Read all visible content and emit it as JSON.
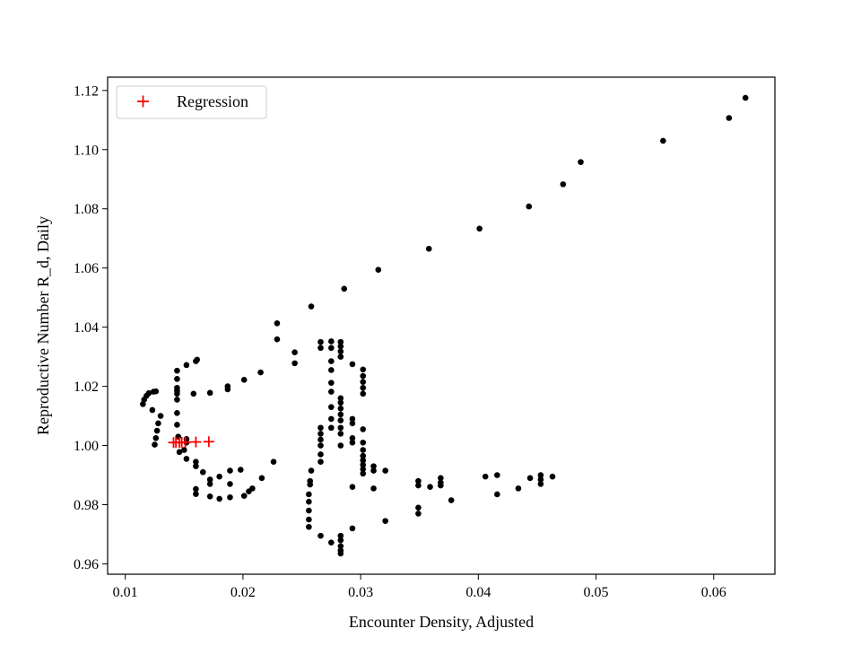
{
  "chart_data": {
    "type": "scatter",
    "title": "",
    "xlabel": "Encounter Density, Adjusted",
    "ylabel": "Reproductive Number R_d, Daily",
    "xlim": [
      0.0085,
      0.0652
    ],
    "ylim": [
      0.9565,
      1.1245
    ],
    "xticks": [
      0.01,
      0.02,
      0.03,
      0.04,
      0.05,
      0.06
    ],
    "xtick_labels": [
      "0.01",
      "0.02",
      "0.03",
      "0.04",
      "0.05",
      "0.06"
    ],
    "yticks": [
      0.96,
      0.98,
      1.0,
      1.02,
      1.04,
      1.06,
      1.08,
      1.1,
      1.12
    ],
    "ytick_labels": [
      "0.96",
      "0.98",
      "1.00",
      "1.02",
      "1.04",
      "1.06",
      "1.08",
      "1.10",
      "1.12"
    ],
    "grid": false,
    "legend": {
      "position": "top-left",
      "entries": [
        "Regression"
      ]
    },
    "series": [
      {
        "marker": "dot",
        "color": "#000000",
        "points": [
          [
            0.0627,
            1.1175
          ],
          [
            0.0613,
            1.1107
          ],
          [
            0.0557,
            1.103
          ],
          [
            0.0487,
            1.0958
          ],
          [
            0.0472,
            1.0883
          ],
          [
            0.0443,
            1.0808
          ],
          [
            0.0401,
            1.0733
          ],
          [
            0.0358,
            1.0665
          ],
          [
            0.0315,
            1.0594
          ],
          [
            0.0286,
            1.053
          ],
          [
            0.0258,
            1.047
          ],
          [
            0.0229,
            1.0413
          ],
          [
            0.0229,
            1.0359
          ],
          [
            0.0244,
            1.0315
          ],
          [
            0.0244,
            1.0278
          ],
          [
            0.0215,
            1.0247
          ],
          [
            0.0201,
            1.0222
          ],
          [
            0.0187,
            1.02
          ],
          [
            0.0187,
            1.019
          ],
          [
            0.0172,
            1.0178
          ],
          [
            0.0158,
            1.0175
          ],
          [
            0.0115,
            1.014
          ],
          [
            0.0116,
            1.0155
          ],
          [
            0.0118,
            1.0168
          ],
          [
            0.012,
            1.0177
          ],
          [
            0.0124,
            1.0182
          ],
          [
            0.0126,
            1.0183
          ],
          [
            0.0123,
            1.012
          ],
          [
            0.013,
            1.01
          ],
          [
            0.0128,
            1.0075
          ],
          [
            0.0127,
            1.005
          ],
          [
            0.0126,
            1.0025
          ],
          [
            0.0125,
            1.0003
          ],
          [
            0.0144,
            1.0253
          ],
          [
            0.0144,
            1.0225
          ],
          [
            0.0144,
            1.0195
          ],
          [
            0.0144,
            1.0185
          ],
          [
            0.0144,
            1.0175
          ],
          [
            0.0144,
            1.0155
          ],
          [
            0.0144,
            1.011
          ],
          [
            0.0144,
            1.007
          ],
          [
            0.0145,
            1.003
          ],
          [
            0.0152,
            1.0272
          ],
          [
            0.016,
            1.0285
          ],
          [
            0.0161,
            1.029
          ],
          [
            0.0152,
            1.0022
          ],
          [
            0.0152,
            1.001
          ],
          [
            0.015,
            0.9985
          ],
          [
            0.0146,
            0.9978
          ],
          [
            0.0152,
            0.9955
          ],
          [
            0.016,
            0.9945
          ],
          [
            0.016,
            0.993
          ],
          [
            0.0166,
            0.991
          ],
          [
            0.0172,
            0.9885
          ],
          [
            0.0172,
            0.987
          ],
          [
            0.016,
            0.9853
          ],
          [
            0.016,
            0.9836
          ],
          [
            0.0172,
            0.9828
          ],
          [
            0.018,
            0.9895
          ],
          [
            0.018,
            0.982
          ],
          [
            0.0189,
            0.9915
          ],
          [
            0.0189,
            0.987
          ],
          [
            0.0189,
            0.9825
          ],
          [
            0.0198,
            0.9918
          ],
          [
            0.0201,
            0.983
          ],
          [
            0.0205,
            0.9845
          ],
          [
            0.0208,
            0.9855
          ],
          [
            0.0216,
            0.989
          ],
          [
            0.0226,
            0.9945
          ],
          [
            0.0258,
            0.9915
          ],
          [
            0.0257,
            0.988
          ],
          [
            0.0257,
            0.9868
          ],
          [
            0.0256,
            0.9835
          ],
          [
            0.0256,
            0.981
          ],
          [
            0.0256,
            0.978
          ],
          [
            0.0256,
            0.975
          ],
          [
            0.0256,
            0.9725
          ],
          [
            0.0266,
            1.035
          ],
          [
            0.0266,
            1.033
          ],
          [
            0.0266,
            1.006
          ],
          [
            0.0266,
            1.004
          ],
          [
            0.0266,
            1.002
          ],
          [
            0.0266,
            1.0
          ],
          [
            0.0266,
            0.997
          ],
          [
            0.0266,
            0.9945
          ],
          [
            0.0266,
            0.9695
          ],
          [
            0.0275,
            1.0352
          ],
          [
            0.0275,
            1.033
          ],
          [
            0.0275,
            1.0285
          ],
          [
            0.0275,
            1.0255
          ],
          [
            0.0275,
            1.0212
          ],
          [
            0.0275,
            1.0182
          ],
          [
            0.0275,
            1.013
          ],
          [
            0.0275,
            1.009
          ],
          [
            0.0275,
            1.006
          ],
          [
            0.0275,
            0.9672
          ],
          [
            0.0283,
            1.035
          ],
          [
            0.0283,
            1.0335
          ],
          [
            0.0283,
            1.0318
          ],
          [
            0.0283,
            1.03
          ],
          [
            0.0283,
            1.016
          ],
          [
            0.0283,
            1.0145
          ],
          [
            0.0283,
            1.0125
          ],
          [
            0.0283,
            1.0105
          ],
          [
            0.0283,
            1.0085
          ],
          [
            0.0283,
            1.006
          ],
          [
            0.0283,
            1.004
          ],
          [
            0.0283,
            1.0
          ],
          [
            0.0283,
            0.9695
          ],
          [
            0.0283,
            0.968
          ],
          [
            0.0283,
            0.966
          ],
          [
            0.0283,
            0.9645
          ],
          [
            0.0283,
            0.9635
          ],
          [
            0.0293,
            1.0275
          ],
          [
            0.0293,
            1.009
          ],
          [
            0.0293,
            1.0075
          ],
          [
            0.0293,
            1.0025
          ],
          [
            0.0293,
            1.001
          ],
          [
            0.0293,
            0.986
          ],
          [
            0.0293,
            0.972
          ],
          [
            0.0302,
            1.0257
          ],
          [
            0.0302,
            1.0235
          ],
          [
            0.0302,
            1.0215
          ],
          [
            0.0302,
            1.0195
          ],
          [
            0.0302,
            1.0175
          ],
          [
            0.0302,
            1.0055
          ],
          [
            0.0302,
            1.001
          ],
          [
            0.0302,
            0.9985
          ],
          [
            0.0302,
            0.9965
          ],
          [
            0.0302,
            0.995
          ],
          [
            0.0302,
            0.9935
          ],
          [
            0.0302,
            0.992
          ],
          [
            0.0302,
            0.9905
          ],
          [
            0.0311,
            0.993
          ],
          [
            0.0311,
            0.9915
          ],
          [
            0.0311,
            0.9855
          ],
          [
            0.0321,
            0.9915
          ],
          [
            0.0321,
            0.9745
          ],
          [
            0.0349,
            0.988
          ],
          [
            0.0349,
            0.9865
          ],
          [
            0.0349,
            0.979
          ],
          [
            0.0349,
            0.977
          ],
          [
            0.0359,
            0.986
          ],
          [
            0.0368,
            0.989
          ],
          [
            0.0368,
            0.9875
          ],
          [
            0.0368,
            0.9865
          ],
          [
            0.0377,
            0.9815
          ],
          [
            0.0406,
            0.9895
          ],
          [
            0.0416,
            0.99
          ],
          [
            0.0416,
            0.9835
          ],
          [
            0.0434,
            0.9855
          ],
          [
            0.0444,
            0.989
          ],
          [
            0.0453,
            0.99
          ],
          [
            0.0453,
            0.9885
          ],
          [
            0.0453,
            0.987
          ],
          [
            0.0463,
            0.9895
          ]
        ]
      },
      {
        "name": "Regression",
        "marker": "plus",
        "color": "#ff0000",
        "points": [
          [
            0.0141,
            1.001
          ],
          [
            0.0143,
            1.001
          ],
          [
            0.0146,
            1.001
          ],
          [
            0.0148,
            1.0011
          ],
          [
            0.0151,
            1.0011
          ],
          [
            0.016,
            1.0012
          ],
          [
            0.0171,
            1.0013
          ]
        ]
      }
    ]
  }
}
